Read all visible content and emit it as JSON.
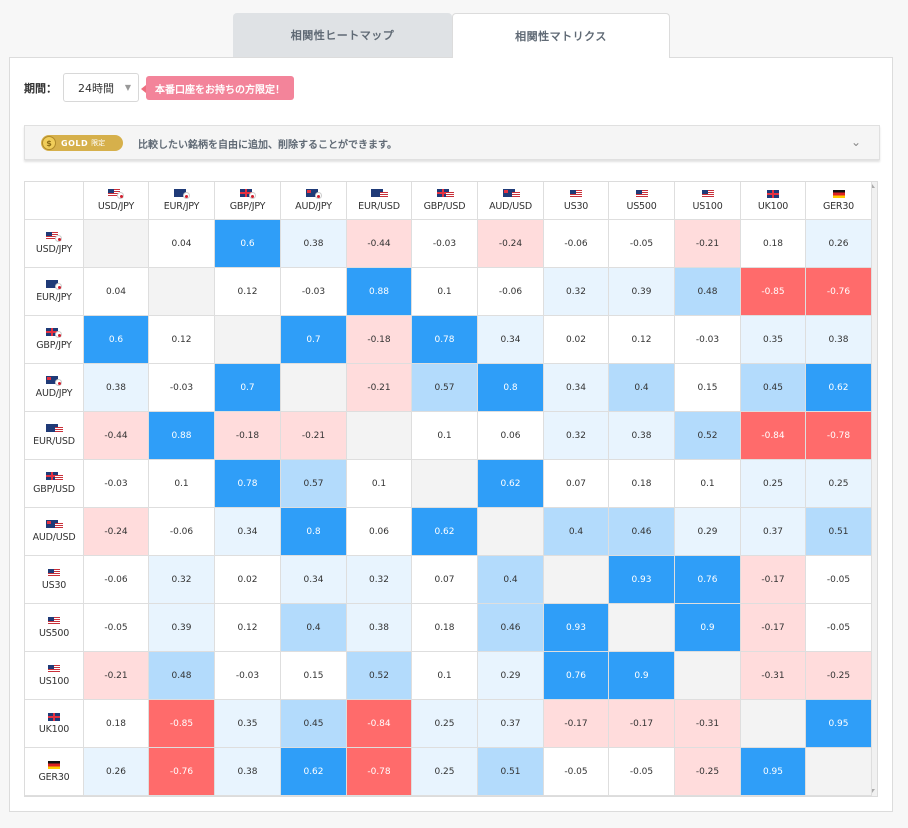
{
  "tabs": [
    {
      "label": "相関性ヒートマップ",
      "active": false
    },
    {
      "label": "相関性マトリクス",
      "active": true
    }
  ],
  "filter": {
    "period_label": "期間：",
    "period_value": "24時間",
    "promo_label": "本番口座をお持ちの方限定！"
  },
  "gold": {
    "badge_text": "GOLD",
    "badge_tag": "限定",
    "description": "比較したい銘柄を自由に追加、削除することができます。"
  },
  "colors": {
    "strong_pos": "#2f9ef8",
    "mid_pos": "#b3dbfc",
    "weak_pos": "#e8f4fe",
    "neutral": "#ffffff",
    "weak_neg": "#ffdcdc",
    "strong_neg": "#ff6b6b",
    "diagonal": "#f3f3f3"
  },
  "instruments": [
    {
      "label": "USD/JPY",
      "flag": "usdjpy"
    },
    {
      "label": "EUR/JPY",
      "flag": "eurjpy"
    },
    {
      "label": "GBP/JPY",
      "flag": "gbpjpy"
    },
    {
      "label": "AUD/JPY",
      "flag": "audjpy"
    },
    {
      "label": "EUR/USD",
      "flag": "eurusd"
    },
    {
      "label": "GBP/USD",
      "flag": "gbpusd"
    },
    {
      "label": "AUD/USD",
      "flag": "audusd"
    },
    {
      "label": "US30",
      "flag": "us"
    },
    {
      "label": "US500",
      "flag": "us"
    },
    {
      "label": "US100",
      "flag": "us"
    },
    {
      "label": "UK100",
      "flag": "uk"
    },
    {
      "label": "GER30",
      "flag": "de"
    }
  ],
  "matrix": [
    [
      null,
      "0.04",
      "0.6",
      "0.38",
      "-0.44",
      "-0.03",
      "-0.24",
      "-0.06",
      "-0.05",
      "-0.21",
      "0.18",
      "0.26"
    ],
    [
      "0.04",
      null,
      "0.12",
      "-0.03",
      "0.88",
      "0.1",
      "-0.06",
      "0.32",
      "0.39",
      "0.48",
      "-0.85",
      "-0.76"
    ],
    [
      "0.6",
      "0.12",
      null,
      "0.7",
      "-0.18",
      "0.78",
      "0.34",
      "0.02",
      "0.12",
      "-0.03",
      "0.35",
      "0.38"
    ],
    [
      "0.38",
      "-0.03",
      "0.7",
      null,
      "-0.21",
      "0.57",
      "0.8",
      "0.34",
      "0.4",
      "0.15",
      "0.45",
      "0.62"
    ],
    [
      "-0.44",
      "0.88",
      "-0.18",
      "-0.21",
      null,
      "0.1",
      "0.06",
      "0.32",
      "0.38",
      "0.52",
      "-0.84",
      "-0.78"
    ],
    [
      "-0.03",
      "0.1",
      "0.78",
      "0.57",
      "0.1",
      null,
      "0.62",
      "0.07",
      "0.18",
      "0.1",
      "0.25",
      "0.25"
    ],
    [
      "-0.24",
      "-0.06",
      "0.34",
      "0.8",
      "0.06",
      "0.62",
      null,
      "0.4",
      "0.46",
      "0.29",
      "0.37",
      "0.51"
    ],
    [
      "-0.06",
      "0.32",
      "0.02",
      "0.34",
      "0.32",
      "0.07",
      "0.4",
      null,
      "0.93",
      "0.76",
      "-0.17",
      "-0.05"
    ],
    [
      "-0.05",
      "0.39",
      "0.12",
      "0.4",
      "0.38",
      "0.18",
      "0.46",
      "0.93",
      null,
      "0.9",
      "-0.17",
      "-0.05"
    ],
    [
      "-0.21",
      "0.48",
      "-0.03",
      "0.15",
      "0.52",
      "0.1",
      "0.29",
      "0.76",
      "0.9",
      null,
      "-0.31",
      "-0.25"
    ],
    [
      "0.18",
      "-0.85",
      "0.35",
      "0.45",
      "-0.84",
      "0.25",
      "0.37",
      "-0.17",
      "-0.17",
      "-0.31",
      null,
      "0.95"
    ],
    [
      "0.26",
      "-0.76",
      "0.38",
      "0.62",
      "-0.78",
      "0.25",
      "0.51",
      "-0.05",
      "-0.05",
      "-0.25",
      "0.95",
      null
    ]
  ]
}
